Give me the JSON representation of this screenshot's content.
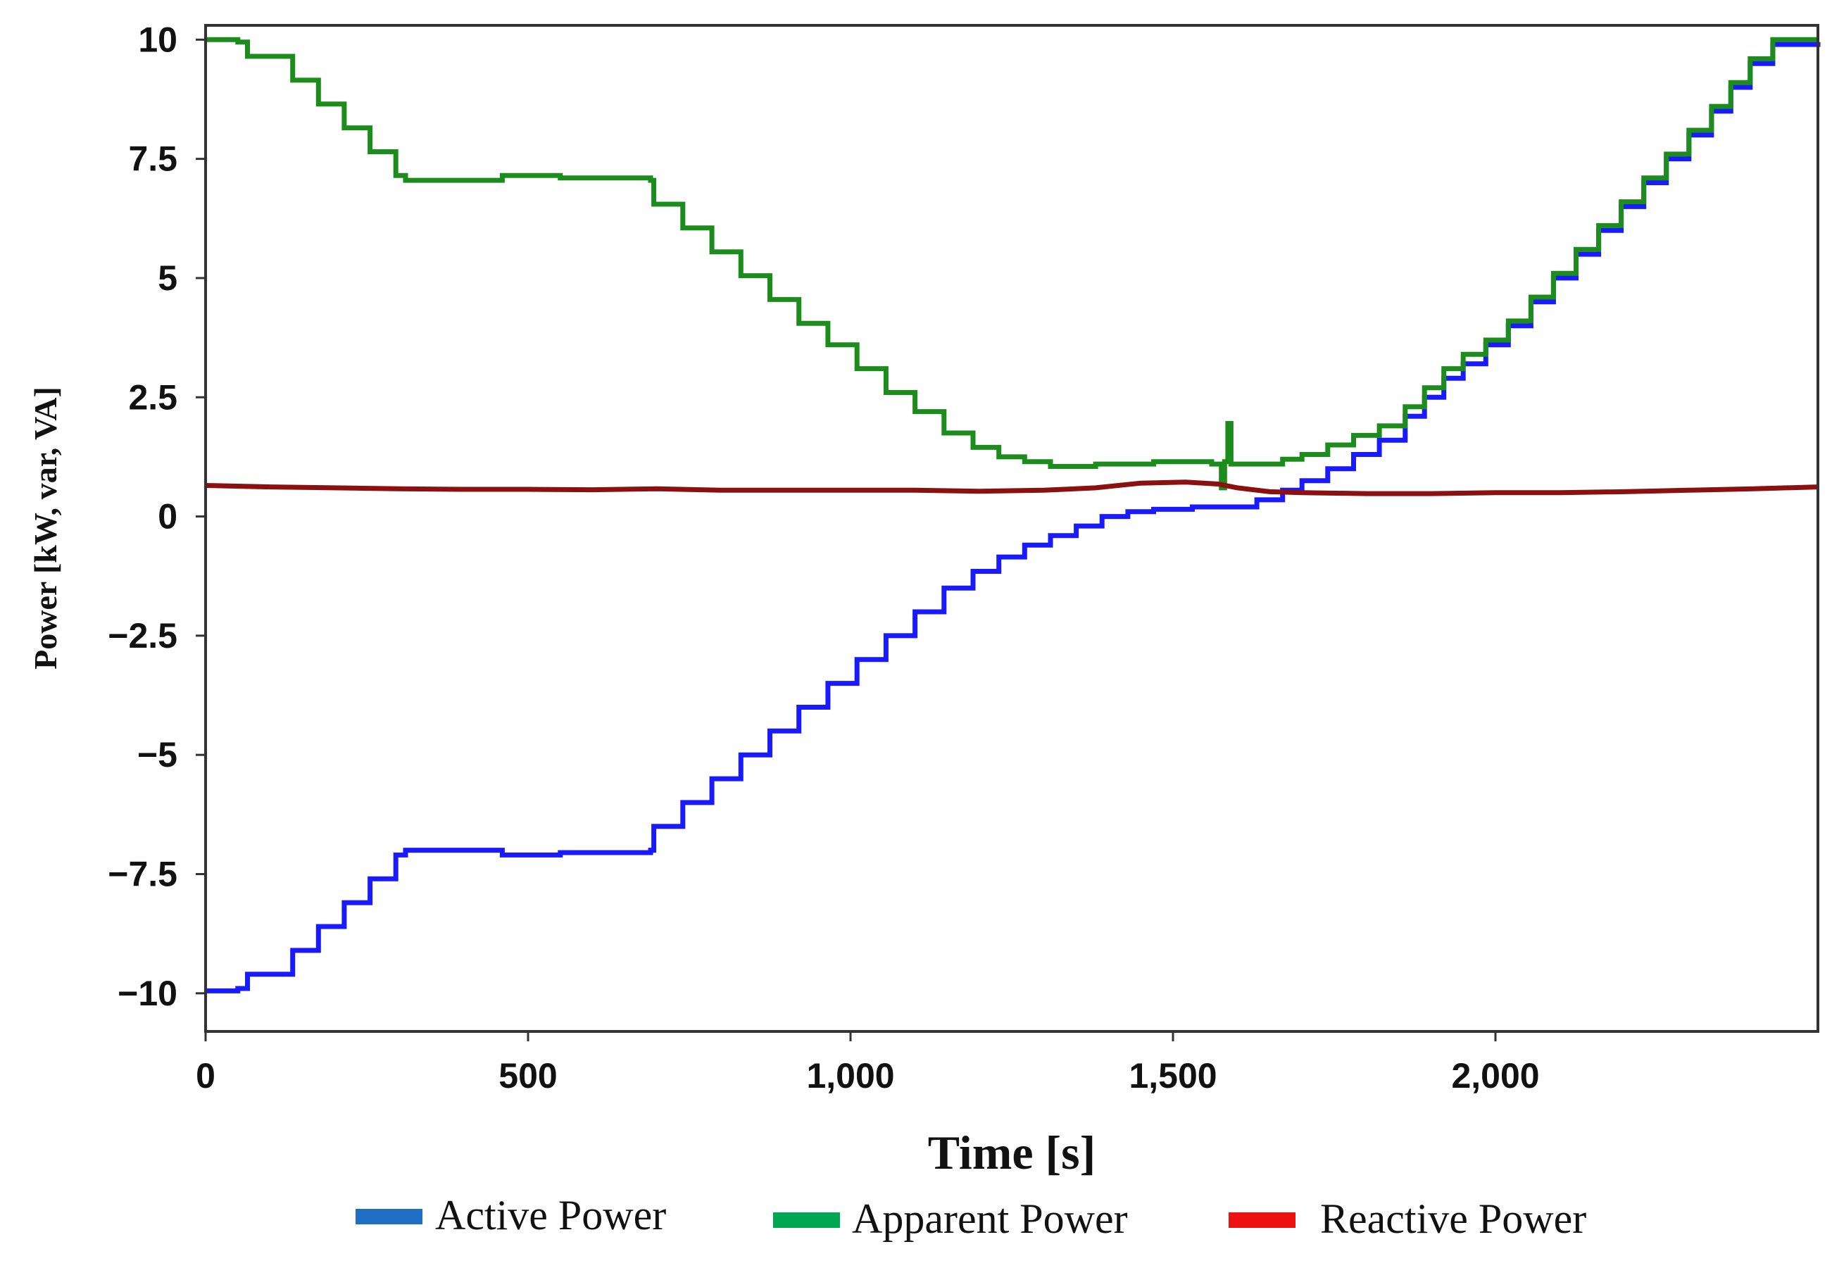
{
  "chart_data": {
    "type": "line",
    "title": "",
    "xlabel": "Time [s]",
    "ylabel": "Power [kW, var, VA]",
    "xlim": [
      0,
      2500
    ],
    "ylim": [
      -10.8,
      10.3
    ],
    "grid": false,
    "legend_position": "bottom",
    "x_ticks": [
      0,
      500,
      1000,
      1500,
      2000
    ],
    "x_tick_labels": [
      "0",
      "500",
      "1,000",
      "1,500",
      "2,000"
    ],
    "y_ticks": [
      10,
      7.5,
      5,
      2.5,
      0,
      -2.5,
      -5,
      -7.5,
      -10
    ],
    "y_tick_labels": [
      "10",
      "7.5",
      "5",
      "2.5",
      "0",
      "−2.5",
      "−5",
      "−7.5",
      "−10"
    ],
    "series": [
      {
        "name": "Active Power",
        "legend_color": "#1f6fc4",
        "line_color": "#1a1aff",
        "step": true,
        "points": [
          [
            0,
            -9.95
          ],
          [
            50,
            -9.9
          ],
          [
            65,
            -9.6
          ],
          [
            130,
            -9.6
          ],
          [
            135,
            -9.1
          ],
          [
            175,
            -8.6
          ],
          [
            215,
            -8.1
          ],
          [
            255,
            -7.6
          ],
          [
            295,
            -7.1
          ],
          [
            310,
            -7.0
          ],
          [
            450,
            -7.0
          ],
          [
            460,
            -7.1
          ],
          [
            550,
            -7.05
          ],
          [
            690,
            -7.0
          ],
          [
            695,
            -6.5
          ],
          [
            740,
            -6.0
          ],
          [
            785,
            -5.5
          ],
          [
            830,
            -5.0
          ],
          [
            875,
            -4.5
          ],
          [
            920,
            -4.0
          ],
          [
            965,
            -3.5
          ],
          [
            1010,
            -3.0
          ],
          [
            1055,
            -2.5
          ],
          [
            1100,
            -2.0
          ],
          [
            1145,
            -1.5
          ],
          [
            1190,
            -1.15
          ],
          [
            1230,
            -0.85
          ],
          [
            1270,
            -0.6
          ],
          [
            1310,
            -0.4
          ],
          [
            1350,
            -0.2
          ],
          [
            1390,
            0.0
          ],
          [
            1430,
            0.1
          ],
          [
            1470,
            0.15
          ],
          [
            1530,
            0.2
          ],
          [
            1575,
            0.2
          ],
          [
            1630,
            0.35
          ],
          [
            1670,
            0.55
          ],
          [
            1700,
            0.75
          ],
          [
            1740,
            1.0
          ],
          [
            1780,
            1.3
          ],
          [
            1820,
            1.6
          ],
          [
            1860,
            2.1
          ],
          [
            1890,
            2.5
          ],
          [
            1920,
            2.9
          ],
          [
            1950,
            3.2
          ],
          [
            1985,
            3.6
          ],
          [
            2020,
            4.0
          ],
          [
            2055,
            4.5
          ],
          [
            2090,
            5.0
          ],
          [
            2125,
            5.5
          ],
          [
            2160,
            6.0
          ],
          [
            2195,
            6.5
          ],
          [
            2230,
            7.0
          ],
          [
            2265,
            7.5
          ],
          [
            2300,
            8.0
          ],
          [
            2335,
            8.5
          ],
          [
            2365,
            9.0
          ],
          [
            2395,
            9.5
          ],
          [
            2430,
            9.9
          ],
          [
            2500,
            9.95
          ]
        ]
      },
      {
        "name": "Apparent Power",
        "legend_color": "#00a651",
        "line_color": "#1c8c1c",
        "step": true,
        "points": [
          [
            0,
            10.0
          ],
          [
            50,
            9.95
          ],
          [
            65,
            9.65
          ],
          [
            130,
            9.65
          ],
          [
            135,
            9.15
          ],
          [
            175,
            8.65
          ],
          [
            215,
            8.15
          ],
          [
            255,
            7.65
          ],
          [
            295,
            7.15
          ],
          [
            310,
            7.05
          ],
          [
            450,
            7.05
          ],
          [
            460,
            7.15
          ],
          [
            550,
            7.1
          ],
          [
            690,
            7.05
          ],
          [
            695,
            6.55
          ],
          [
            740,
            6.05
          ],
          [
            785,
            5.55
          ],
          [
            830,
            5.05
          ],
          [
            875,
            4.55
          ],
          [
            920,
            4.05
          ],
          [
            965,
            3.6
          ],
          [
            1010,
            3.1
          ],
          [
            1055,
            2.6
          ],
          [
            1100,
            2.2
          ],
          [
            1145,
            1.75
          ],
          [
            1190,
            1.45
          ],
          [
            1230,
            1.25
          ],
          [
            1270,
            1.15
          ],
          [
            1310,
            1.05
          ],
          [
            1380,
            1.1
          ],
          [
            1470,
            1.15
          ],
          [
            1560,
            1.1
          ],
          [
            1575,
            0.6
          ],
          [
            1580,
            1.15
          ],
          [
            1585,
            1.95
          ],
          [
            1590,
            1.1
          ],
          [
            1630,
            1.1
          ],
          [
            1670,
            1.2
          ],
          [
            1700,
            1.3
          ],
          [
            1740,
            1.5
          ],
          [
            1780,
            1.7
          ],
          [
            1820,
            1.9
          ],
          [
            1860,
            2.3
          ],
          [
            1890,
            2.7
          ],
          [
            1920,
            3.1
          ],
          [
            1950,
            3.4
          ],
          [
            1985,
            3.7
          ],
          [
            2020,
            4.1
          ],
          [
            2055,
            4.6
          ],
          [
            2090,
            5.1
          ],
          [
            2125,
            5.6
          ],
          [
            2160,
            6.1
          ],
          [
            2195,
            6.6
          ],
          [
            2230,
            7.1
          ],
          [
            2265,
            7.6
          ],
          [
            2300,
            8.1
          ],
          [
            2335,
            8.6
          ],
          [
            2365,
            9.1
          ],
          [
            2395,
            9.6
          ],
          [
            2430,
            10.0
          ],
          [
            2500,
            10.0
          ]
        ]
      },
      {
        "name": "Reactive Power",
        "legend_color": "#ee1111",
        "line_color": "#8b1010",
        "step": false,
        "points": [
          [
            0,
            0.65
          ],
          [
            100,
            0.62
          ],
          [
            200,
            0.6
          ],
          [
            300,
            0.58
          ],
          [
            400,
            0.57
          ],
          [
            500,
            0.57
          ],
          [
            600,
            0.56
          ],
          [
            700,
            0.58
          ],
          [
            800,
            0.55
          ],
          [
            900,
            0.55
          ],
          [
            1000,
            0.55
          ],
          [
            1100,
            0.55
          ],
          [
            1200,
            0.53
          ],
          [
            1300,
            0.55
          ],
          [
            1380,
            0.6
          ],
          [
            1450,
            0.7
          ],
          [
            1520,
            0.72
          ],
          [
            1570,
            0.68
          ],
          [
            1600,
            0.6
          ],
          [
            1650,
            0.52
          ],
          [
            1700,
            0.5
          ],
          [
            1800,
            0.48
          ],
          [
            1900,
            0.48
          ],
          [
            2000,
            0.5
          ],
          [
            2100,
            0.5
          ],
          [
            2200,
            0.52
          ],
          [
            2300,
            0.55
          ],
          [
            2400,
            0.58
          ],
          [
            2500,
            0.62
          ]
        ]
      }
    ]
  }
}
